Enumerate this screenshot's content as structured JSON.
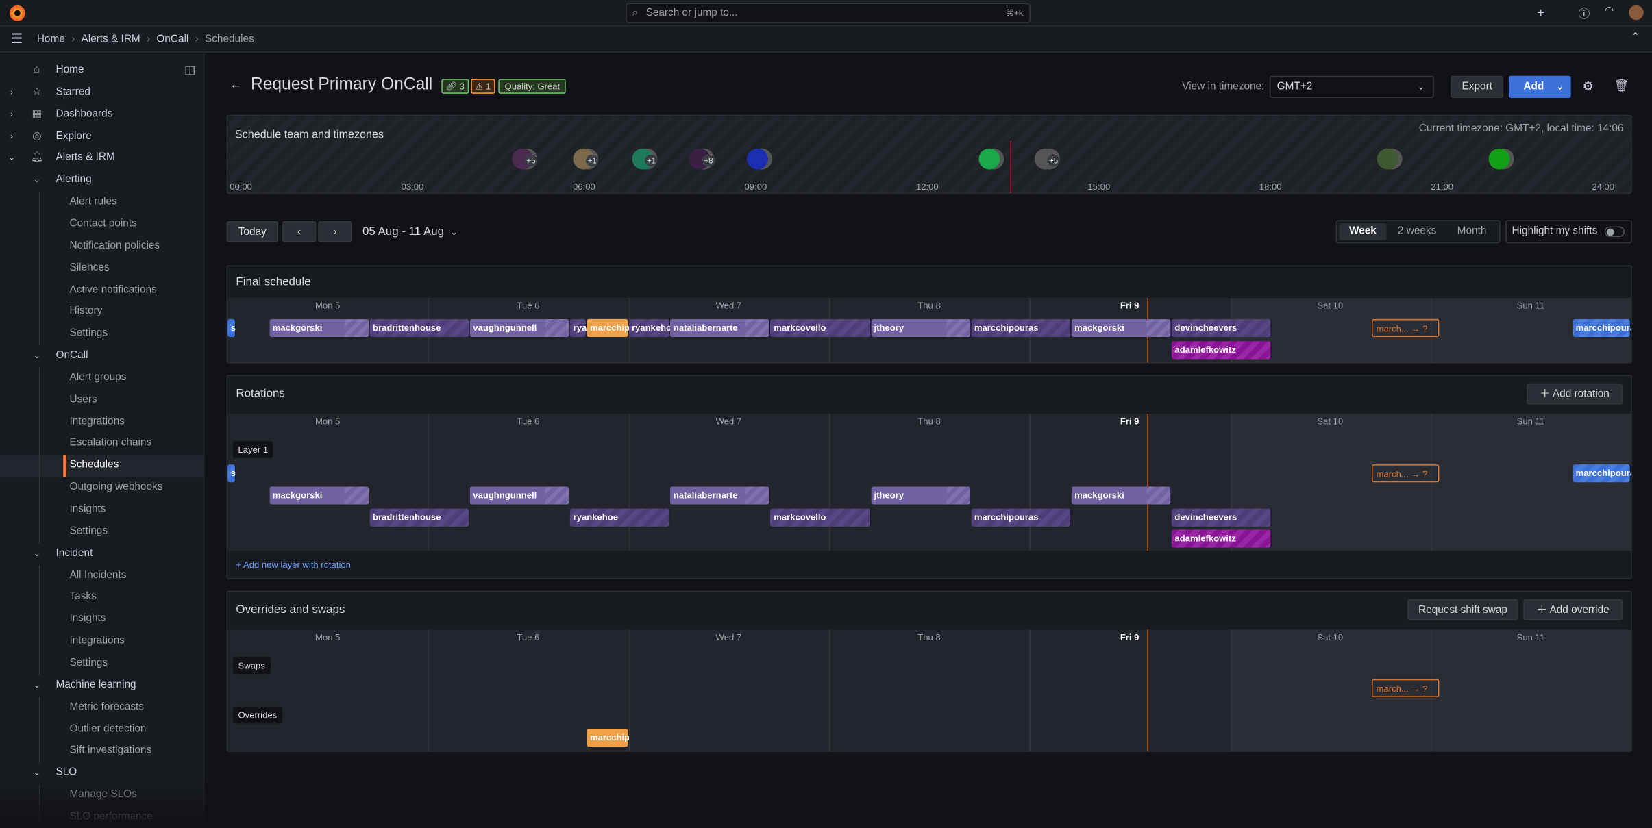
{
  "topbar": {
    "search_placeholder": "Search or jump to...",
    "search_shortcut": "⌘+k",
    "plus": "+",
    "help_icon": "help",
    "news_icon": "rss"
  },
  "breadcrumb": [
    "Home",
    "Alerts & IRM",
    "OnCall",
    "Schedules"
  ],
  "sidebar": {
    "items": [
      {
        "label": "Home",
        "level": 0,
        "icon": "⌂"
      },
      {
        "label": "Starred",
        "level": 0,
        "icon": "☆",
        "chevron": "›"
      },
      {
        "label": "Dashboards",
        "level": 0,
        "icon": "▦",
        "chevron": "›"
      },
      {
        "label": "Explore",
        "level": 0,
        "icon": "◎",
        "chevron": "›"
      },
      {
        "label": "Alerts & IRM",
        "level": 0,
        "icon": "🔔︎",
        "chevron": "⌄"
      },
      {
        "label": "Alerting",
        "level": 1,
        "chevron": "⌄"
      },
      {
        "label": "Alert rules",
        "level": 2
      },
      {
        "label": "Contact points",
        "level": 2
      },
      {
        "label": "Notification policies",
        "level": 2
      },
      {
        "label": "Silences",
        "level": 2
      },
      {
        "label": "Active notifications",
        "level": 2
      },
      {
        "label": "History",
        "level": 2
      },
      {
        "label": "Settings",
        "level": 2
      },
      {
        "label": "OnCall",
        "level": 1,
        "chevron": "⌄"
      },
      {
        "label": "Alert groups",
        "level": 2
      },
      {
        "label": "Users",
        "level": 2
      },
      {
        "label": "Integrations",
        "level": 2
      },
      {
        "label": "Escalation chains",
        "level": 2
      },
      {
        "label": "Schedules",
        "level": 2,
        "active": true
      },
      {
        "label": "Outgoing webhooks",
        "level": 2
      },
      {
        "label": "Insights",
        "level": 2
      },
      {
        "label": "Settings",
        "level": 2
      },
      {
        "label": "Incident",
        "level": 1,
        "chevron": "⌄"
      },
      {
        "label": "All Incidents",
        "level": 2
      },
      {
        "label": "Tasks",
        "level": 2
      },
      {
        "label": "Insights",
        "level": 2
      },
      {
        "label": "Integrations",
        "level": 2
      },
      {
        "label": "Settings",
        "level": 2
      },
      {
        "label": "Machine learning",
        "level": 1,
        "chevron": "⌄"
      },
      {
        "label": "Metric forecasts",
        "level": 2
      },
      {
        "label": "Outlier detection",
        "level": 2
      },
      {
        "label": "Sift investigations",
        "level": 2
      },
      {
        "label": "SLO",
        "level": 1,
        "chevron": "⌄"
      },
      {
        "label": "Manage SLOs",
        "level": 2
      },
      {
        "label": "SLO performance",
        "level": 2
      }
    ]
  },
  "header": {
    "title": "Request Primary OnCall",
    "badge_links": "3",
    "badge_warnings": "1",
    "badge_quality": "Quality: Great",
    "tz_label": "View in timezone:",
    "tz_value": "GMT+2",
    "export": "Export",
    "add": "Add",
    "colors": {
      "accent": "#3d71d9",
      "quality": "#73bf69",
      "warning": "#ff9830"
    }
  },
  "team": {
    "title": "Schedule team and timezones",
    "current": "Current timezone: GMT+2, local time: 14:06",
    "current_time": "14:06",
    "ticks": [
      "00:00",
      "03:00",
      "06:00",
      "09:00",
      "12:00",
      "15:00",
      "18:00",
      "21:00",
      "24:00"
    ],
    "avatars": [
      {
        "time": "04:56",
        "more": "+5",
        "color": "#4b2b4f"
      },
      {
        "time": "06:00",
        "more": "+1",
        "color": "#7b6a4c"
      },
      {
        "time": "07:02",
        "more": "+1",
        "color": "#1e7a5a"
      },
      {
        "time": "08:02",
        "more": "+8",
        "color": "#3a1f45"
      },
      {
        "time": "09:03",
        "more": "",
        "color": "#1b2fb0"
      },
      {
        "time": "13:06",
        "more": "",
        "color": "#1aa84a"
      },
      {
        "time": "14:04",
        "more": "+5",
        "color": "#555"
      },
      {
        "time": "20:04",
        "more": "",
        "color": "#3f5a32"
      },
      {
        "time": "22:01",
        "more": "",
        "color": "#13a11a"
      }
    ]
  },
  "controls": {
    "today": "Today",
    "prev": "‹",
    "next": "›",
    "range": "05 Aug - 11 Aug",
    "views": [
      "Week",
      "2 weeks",
      "Month"
    ],
    "active_view": "Week",
    "highlight": "Highlight my shifts",
    "highlight_on": false
  },
  "days": [
    "Mon 5",
    "Tue 6",
    "Wed 7",
    "Thu 8",
    "Fri 9",
    "Sat 10",
    "Sun 11"
  ],
  "now": "Aug 9 14:06",
  "final": {
    "title": "Final schedule",
    "rows": [
      [
        {
          "user": "s",
          "start": "Aug 5 00:00",
          "end": "Aug 5 01:00",
          "style": "blue"
        },
        {
          "user": "mackgorski",
          "start": "Aug 5 05:00",
          "end": "Aug 5 17:00",
          "style": "light"
        },
        {
          "user": "bradrittenhouse",
          "start": "Aug 5 17:00",
          "end": "Aug 6 05:00",
          "style": "dark"
        },
        {
          "user": "vaughngunnell",
          "start": "Aug 6 05:00",
          "end": "Aug 6 17:00",
          "style": "light"
        },
        {
          "user": "rya",
          "start": "Aug 6 17:00",
          "end": "Aug 6 19:00",
          "style": "dark"
        },
        {
          "user": "marcchip",
          "start": "Aug 6 19:00",
          "end": "Aug 7 00:00",
          "style": "orange"
        },
        {
          "user": "ryankeho",
          "start": "Aug 7 00:00",
          "end": "Aug 7 05:00",
          "style": "dark"
        },
        {
          "user": "nataliabernarte",
          "start": "Aug 7 05:00",
          "end": "Aug 7 17:00",
          "style": "light"
        },
        {
          "user": "markcovello",
          "start": "Aug 7 17:00",
          "end": "Aug 8 05:00",
          "style": "dark"
        },
        {
          "user": "jtheory",
          "start": "Aug 8 05:00",
          "end": "Aug 8 17:00",
          "style": "light"
        },
        {
          "user": "marcchipouras",
          "start": "Aug 8 17:00",
          "end": "Aug 9 05:00",
          "style": "dark"
        },
        {
          "user": "mackgorski",
          "start": "Aug 9 05:00",
          "end": "Aug 9 17:00",
          "style": "light"
        },
        {
          "user": "devincheevers",
          "start": "Aug 9 17:00",
          "end": "Aug 10 05:00",
          "style": "dark"
        },
        {
          "user": "march... → ?",
          "start": "Aug 10 17:00",
          "end": "Aug 11 01:00",
          "style": "swap"
        },
        {
          "user": "marcchipoura",
          "start": "Aug 11 17:00",
          "end": "Aug 12 00:00",
          "style": "blue"
        }
      ],
      [
        {
          "user": "adamlefkowitz",
          "start": "Aug 9 17:00",
          "end": "Aug 10 05:00",
          "style": "magenta"
        }
      ]
    ]
  },
  "rotations": {
    "title": "Rotations",
    "add": "Add rotation",
    "layer": "Layer 1",
    "add_layer": "+ Add new layer with rotation",
    "rows": [
      [
        {
          "user": "s",
          "start": "Aug 5 00:00",
          "end": "Aug 5 01:00",
          "style": "blue"
        },
        {
          "user": "march... → ?",
          "start": "Aug 10 17:00",
          "end": "Aug 11 01:00",
          "style": "swap"
        },
        {
          "user": "marcchipoura",
          "start": "Aug 11 17:00",
          "end": "Aug 12 00:00",
          "style": "blue"
        }
      ],
      [
        {
          "user": "mackgorski",
          "start": "Aug 5 05:00",
          "end": "Aug 5 17:00",
          "style": "light"
        },
        {
          "user": "vaughngunnell",
          "start": "Aug 6 05:00",
          "end": "Aug 6 17:00",
          "style": "light"
        },
        {
          "user": "nataliabernarte",
          "start": "Aug 7 05:00",
          "end": "Aug 7 17:00",
          "style": "light"
        },
        {
          "user": "jtheory",
          "start": "Aug 8 05:00",
          "end": "Aug 8 17:00",
          "style": "light"
        },
        {
          "user": "mackgorski",
          "start": "Aug 9 05:00",
          "end": "Aug 9 17:00",
          "style": "light"
        }
      ],
      [
        {
          "user": "bradrittenhouse",
          "start": "Aug 5 17:00",
          "end": "Aug 6 05:00",
          "style": "dark"
        },
        {
          "user": "ryankehoe",
          "start": "Aug 6 17:00",
          "end": "Aug 7 05:00",
          "style": "dark"
        },
        {
          "user": "markcovello",
          "start": "Aug 7 17:00",
          "end": "Aug 8 05:00",
          "style": "dark"
        },
        {
          "user": "marcchipouras",
          "start": "Aug 8 17:00",
          "end": "Aug 9 05:00",
          "style": "dark"
        },
        {
          "user": "devincheevers",
          "start": "Aug 9 17:00",
          "end": "Aug 10 05:00",
          "style": "dark"
        }
      ],
      [
        {
          "user": "adamlefkowitz",
          "start": "Aug 9 17:00",
          "end": "Aug 10 05:00",
          "style": "magenta"
        }
      ]
    ]
  },
  "overrides": {
    "title": "Overrides and swaps",
    "swap_button": "Request shift swap",
    "add": "Add override",
    "swaps_label": "Swaps",
    "overrides_label": "Overrides",
    "swaps": [
      {
        "user": "march... → ?",
        "start": "Aug 10 17:00",
        "end": "Aug 11 01:00",
        "style": "swap"
      }
    ],
    "items": [
      {
        "user": "marcchip",
        "start": "Aug 6 19:00",
        "end": "Aug 7 00:00",
        "style": "orange"
      }
    ]
  }
}
